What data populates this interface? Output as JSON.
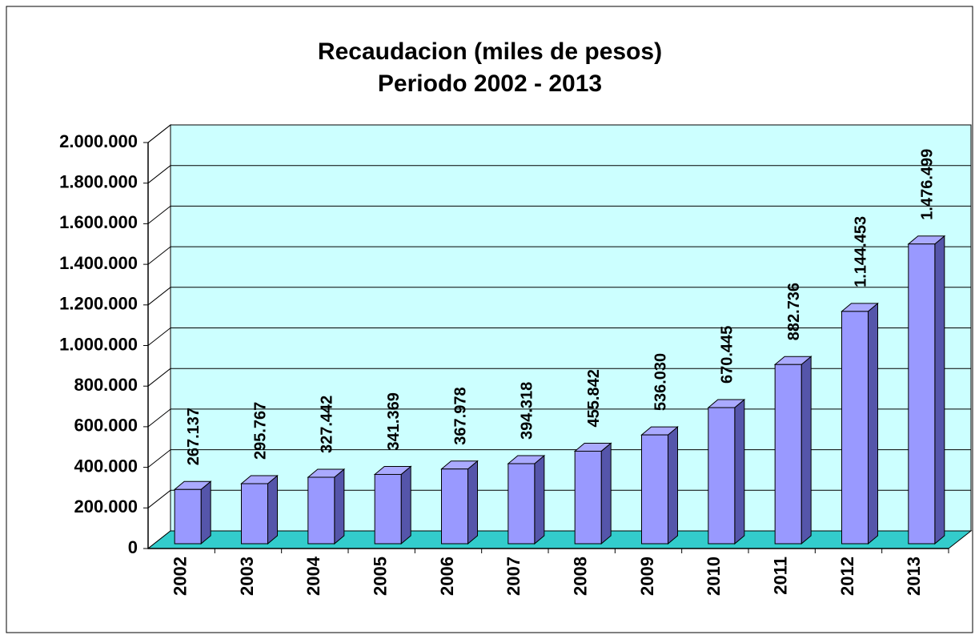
{
  "chart_data": {
    "type": "bar3d",
    "title": "Recaudacion (miles de pesos)",
    "subtitle": "Periodo 2002 - 2013",
    "categories": [
      "2002",
      "2003",
      "2004",
      "2005",
      "2006",
      "2007",
      "2008",
      "2009",
      "2010",
      "2011",
      "2012",
      "2013"
    ],
    "values": [
      267137,
      295767,
      327442,
      341369,
      367978,
      394318,
      455842,
      536030,
      670445,
      882736,
      1144453,
      1476499
    ],
    "value_labels": [
      "267.137",
      "295.767",
      "327.442",
      "341.369",
      "367.978",
      "394.318",
      "455.842",
      "536.030",
      "670.445",
      "882.736",
      "1.144.453",
      "1.476.499"
    ],
    "color": "#9999ff",
    "wall_color": "#ccffff",
    "floor_color": "#33cccc",
    "ylim": [
      0,
      2000000
    ],
    "yticks": [
      0,
      {
        "value": 200000,
        "label": "200.000"
      },
      {
        "value": 400000,
        "label": "400.000"
      },
      {
        "value": 600000,
        "label": "600.000"
      },
      {
        "value": 800000,
        "label": "800.000"
      },
      {
        "value": 1000000,
        "label": "1.000.000"
      },
      {
        "value": 1200000,
        "label": "1.200.000"
      },
      {
        "value": 1400000,
        "label": "1.400.000"
      },
      {
        "value": 1600000,
        "label": "1.600.000"
      },
      {
        "value": 1800000,
        "label": "1.800.000"
      },
      {
        "value": 2000000,
        "label": "2.000.000"
      }
    ],
    "grid": true
  }
}
